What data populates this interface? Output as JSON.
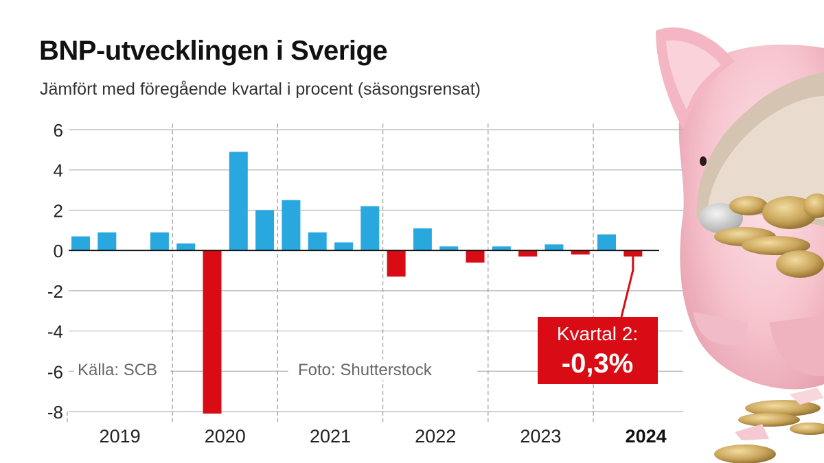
{
  "title": "BNP-utvecklingen i Sverige",
  "subtitle": "Jämfört med föregående kvartal i procent (säsongsrensat)",
  "source": "Källa: SCB",
  "photo_credit": "Foto: Shutterstock",
  "callout": {
    "line1": "Kvartal 2:",
    "line2": "-0,3%"
  },
  "colors": {
    "positive": "#29a8e0",
    "negative": "#d90c15",
    "callout_bg": "#d90c15"
  },
  "chart_data": {
    "type": "bar",
    "title": "BNP-utvecklingen i Sverige",
    "subtitle": "Jämfört med föregående kvartal i procent (säsongsrensat)",
    "xlabel": "",
    "ylabel": "",
    "ylim": [
      -8,
      6
    ],
    "yticks": [
      6,
      4,
      2,
      0,
      -2,
      -4,
      -6,
      -8
    ],
    "year_labels": [
      "2019",
      "2020",
      "2021",
      "2022",
      "2023",
      "2024"
    ],
    "bold_year": "2024",
    "grid": true,
    "values": [
      0.7,
      0.9,
      null,
      0.9,
      0.35,
      -8.1,
      4.9,
      2.0,
      2.5,
      0.9,
      0.4,
      2.2,
      -1.3,
      1.1,
      0.2,
      -0.6,
      0.2,
      -0.3,
      0.3,
      -0.2,
      0.8,
      -0.3
    ]
  }
}
